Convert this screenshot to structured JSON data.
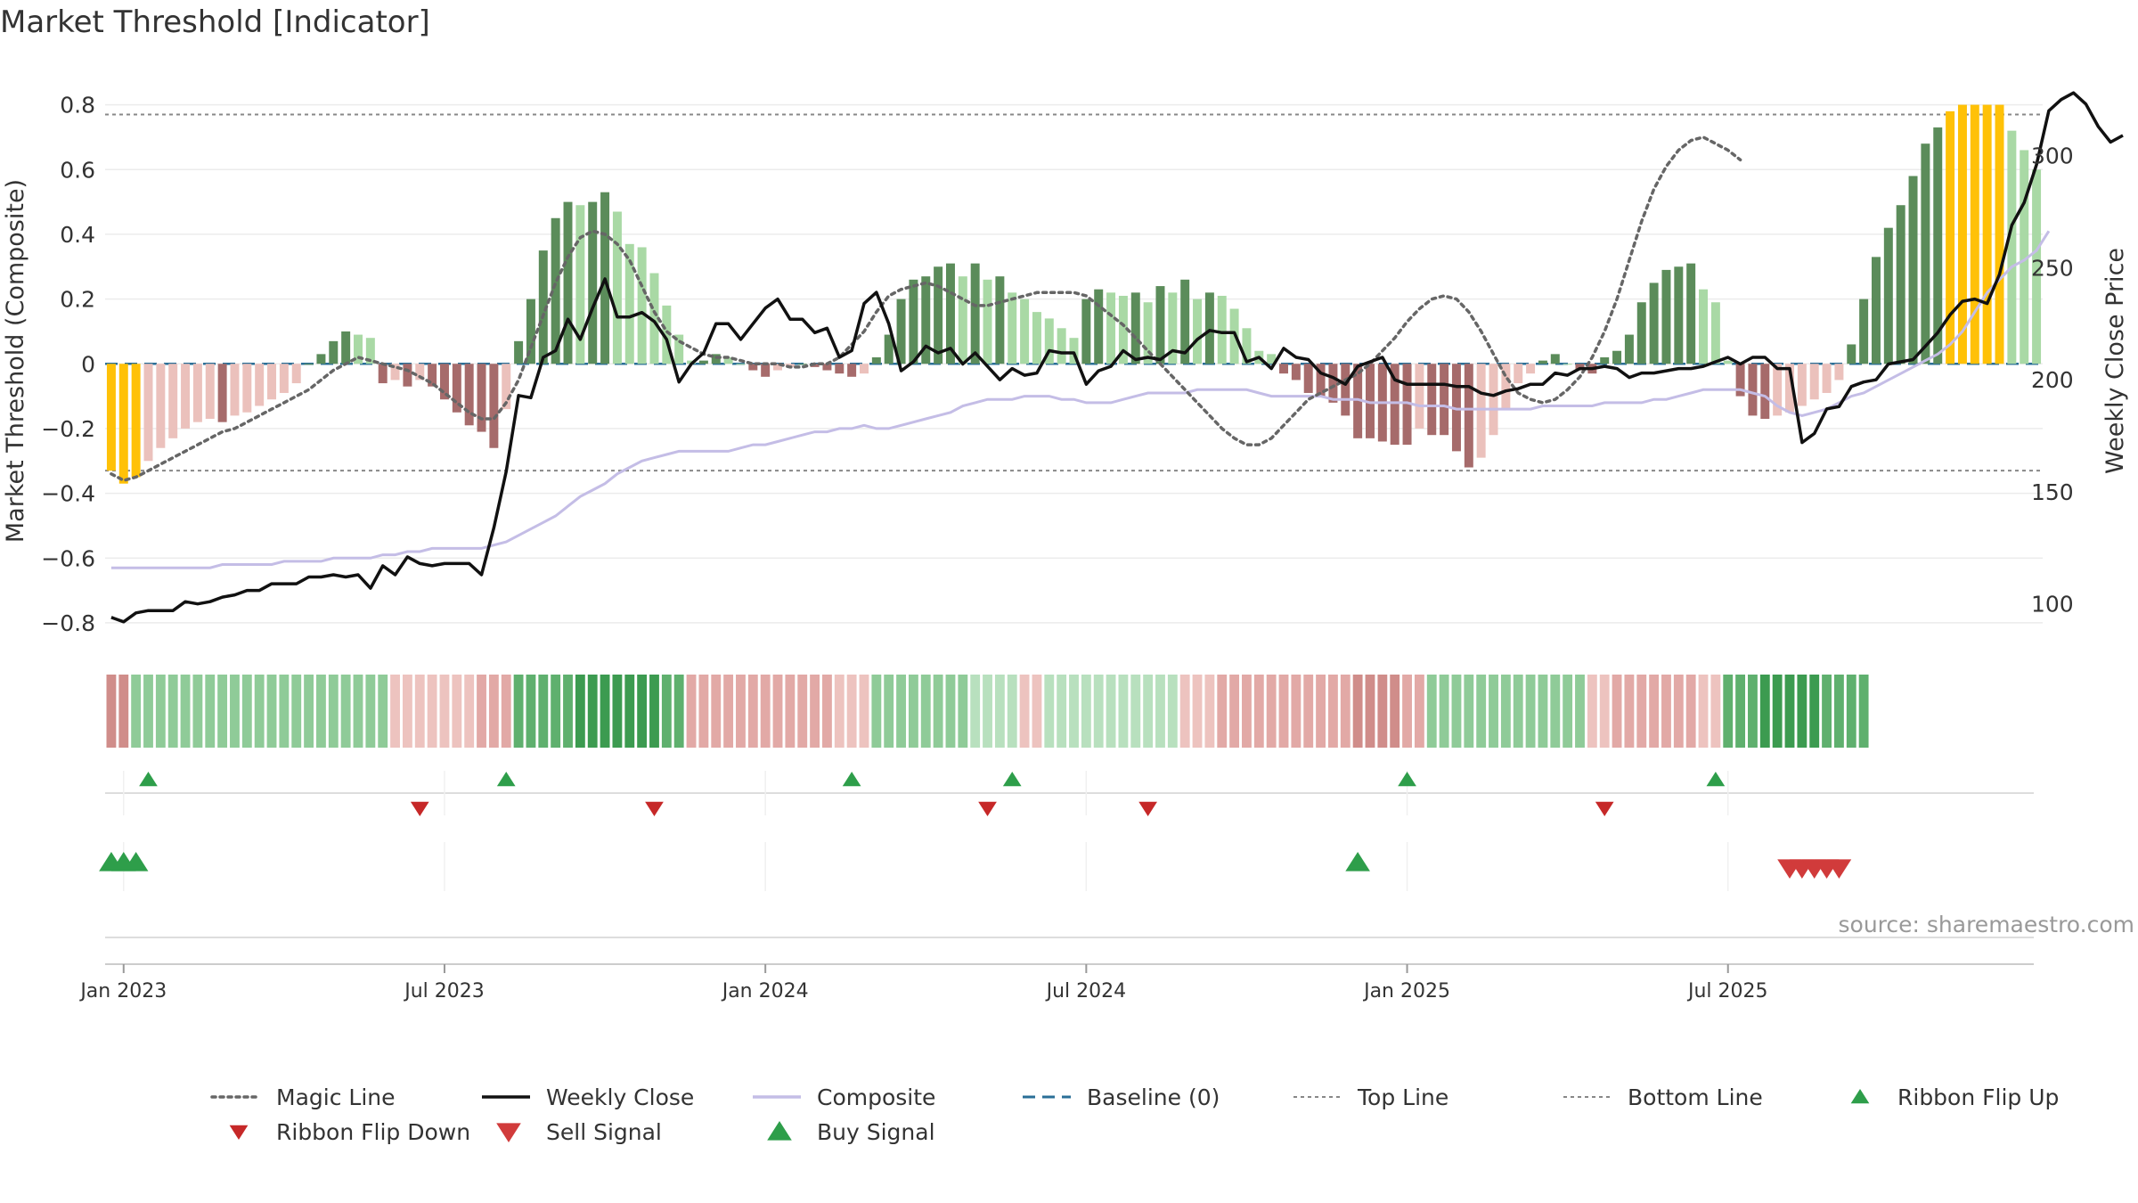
{
  "chart_data": {
    "type": "bar",
    "title": "Market Threshold [Indicator]",
    "ylabel": "Market Threshold (Composite)",
    "y2label": "Weekly Close Price",
    "source": "source: sharemaestro.com",
    "ylim": [
      -0.88,
      0.92
    ],
    "y2lim": [
      80,
      340
    ],
    "grid": true,
    "legend_position": "bottom",
    "y_ticks": [
      {
        "value": 0.8,
        "label": "0.8"
      },
      {
        "value": 0.6,
        "label": "0.6"
      },
      {
        "value": 0.4,
        "label": "0.4"
      },
      {
        "value": 0.2,
        "label": "0.2"
      },
      {
        "value": 0,
        "label": "0"
      },
      {
        "value": -0.2,
        "label": "−0.2"
      },
      {
        "value": -0.4,
        "label": "−0.4"
      },
      {
        "value": -0.6,
        "label": "−0.6"
      },
      {
        "value": -0.8,
        "label": "−0.8"
      }
    ],
    "y2_ticks": [
      {
        "value": 300,
        "label": "300"
      },
      {
        "value": 250,
        "label": "250"
      },
      {
        "value": 200,
        "label": "200"
      },
      {
        "value": 150,
        "label": "150"
      },
      {
        "value": 100,
        "label": "100"
      }
    ],
    "x_ticks": [
      {
        "week": 1,
        "label": "Jan 2023"
      },
      {
        "week": 27,
        "label": "Jul 2023"
      },
      {
        "week": 53,
        "label": "Jan 2024"
      },
      {
        "week": 79,
        "label": "Jul 2024"
      },
      {
        "week": 105,
        "label": "Jan 2025"
      },
      {
        "week": 131,
        "label": "Jul 2025"
      }
    ],
    "top_line": 0.77,
    "bottom_line": -0.33,
    "colors": {
      "gold": "#FFC107",
      "green_dark": "#5B8C5A",
      "green_light": "#A9D9A5",
      "red_dark": "#A66B6B",
      "red_light": "#EBC1BC",
      "weekly_close": "#111111",
      "composite": "#C4BDE6",
      "magic_line": "#666666",
      "baseline": "#2A6F97",
      "threshold": "#888888",
      "signal_up": "#2E9E4A",
      "signal_down": "#D13B3B"
    },
    "bars": [
      -0.33,
      -0.37,
      -0.35,
      -0.3,
      -0.26,
      -0.23,
      -0.2,
      -0.18,
      -0.17,
      -0.18,
      -0.16,
      -0.15,
      -0.13,
      -0.11,
      -0.09,
      -0.06,
      0,
      0.03,
      0.07,
      0.1,
      0.09,
      0.08,
      -0.06,
      -0.05,
      -0.07,
      -0.05,
      -0.07,
      -0.11,
      -0.15,
      -0.19,
      -0.21,
      -0.26,
      -0.14,
      0.07,
      0.2,
      0.35,
      0.45,
      0.5,
      0.49,
      0.5,
      0.53,
      0.47,
      0.37,
      0.36,
      0.28,
      0.18,
      0.09,
      0.01,
      0.01,
      0.03,
      0.02,
      0,
      -0.02,
      -0.04,
      -0.02,
      -0.01,
      0,
      -0.01,
      -0.02,
      -0.03,
      -0.04,
      -0.03,
      0.02,
      0.09,
      0.2,
      0.26,
      0.27,
      0.3,
      0.31,
      0.27,
      0.31,
      0.26,
      0.27,
      0.22,
      0.2,
      0.16,
      0.14,
      0.11,
      0.08,
      0.2,
      0.23,
      0.22,
      0.21,
      0.22,
      0.19,
      0.24,
      0.22,
      0.26,
      0.2,
      0.22,
      0.21,
      0.17,
      0.11,
      0.04,
      0.03,
      -0.03,
      -0.05,
      -0.09,
      -0.1,
      -0.12,
      -0.16,
      -0.23,
      -0.23,
      -0.24,
      -0.25,
      -0.25,
      -0.2,
      -0.22,
      -0.22,
      -0.27,
      -0.32,
      -0.29,
      -0.22,
      -0.14,
      -0.06,
      -0.03,
      0.01,
      0.03,
      0,
      -0.02,
      -0.03,
      0.02,
      0.04,
      0.09,
      0.19,
      0.25,
      0.29,
      0.3,
      0.31,
      0.23,
      0.19,
      0.01,
      -0.1,
      -0.16,
      -0.17,
      -0.16,
      -0.15,
      -0.13,
      -0.11,
      -0.09,
      -0.05,
      0.06,
      0.2,
      0.33,
      0.42,
      0.49,
      0.58,
      0.68,
      0.73,
      0.78,
      0.8,
      0.8,
      0.8,
      0.8,
      0.72,
      0.66,
      0.6
    ],
    "weekly_close": [
      94,
      92,
      96,
      97,
      97,
      97,
      101,
      100,
      101,
      103,
      104,
      106,
      106,
      109,
      109,
      109,
      112,
      112,
      113,
      112,
      113,
      107,
      117,
      113,
      121,
      118,
      117,
      118,
      118,
      118,
      113,
      134,
      159,
      193,
      192,
      210,
      213,
      227,
      218,
      232,
      245,
      228,
      228,
      230,
      226,
      218,
      199,
      207,
      212,
      225,
      225,
      218,
      225,
      232,
      236,
      227,
      227,
      221,
      223,
      210,
      213,
      234,
      239,
      225,
      204,
      208,
      215,
      212,
      214,
      207,
      212,
      206,
      200,
      205,
      202,
      203,
      213,
      212,
      212,
      198,
      204,
      206,
      213,
      209,
      210,
      209,
      213,
      212,
      218,
      222,
      221,
      221,
      208,
      210,
      205,
      214,
      210,
      209,
      203,
      201,
      198,
      206,
      208,
      210,
      200,
      198,
      198,
      198,
      198,
      197,
      197,
      194,
      193,
      195,
      196,
      198,
      198,
      203,
      202,
      205,
      205,
      206,
      205,
      201,
      203,
      203,
      204,
      205,
      205,
      206,
      208,
      210,
      207,
      210,
      210,
      205,
      205,
      172,
      176,
      187,
      188,
      197,
      199,
      200,
      207,
      208,
      209,
      215,
      221,
      229,
      235,
      236,
      234,
      247,
      269,
      279,
      296,
      320,
      325,
      328,
      323,
      313,
      306,
      309
    ],
    "composite": [
      -0.63,
      -0.63,
      -0.63,
      -0.63,
      -0.63,
      -0.63,
      -0.63,
      -0.63,
      -0.63,
      -0.62,
      -0.62,
      -0.62,
      -0.62,
      -0.62,
      -0.61,
      -0.61,
      -0.61,
      -0.61,
      -0.6,
      -0.6,
      -0.6,
      -0.6,
      -0.59,
      -0.59,
      -0.58,
      -0.58,
      -0.57,
      -0.57,
      -0.57,
      -0.57,
      -0.57,
      -0.56,
      -0.55,
      -0.53,
      -0.51,
      -0.49,
      -0.47,
      -0.44,
      -0.41,
      -0.39,
      -0.37,
      -0.34,
      -0.32,
      -0.3,
      -0.29,
      -0.28,
      -0.27,
      -0.27,
      -0.27,
      -0.27,
      -0.27,
      -0.26,
      -0.25,
      -0.25,
      -0.24,
      -0.23,
      -0.22,
      -0.21,
      -0.21,
      -0.2,
      -0.2,
      -0.19,
      -0.2,
      -0.2,
      -0.19,
      -0.18,
      -0.17,
      -0.16,
      -0.15,
      -0.13,
      -0.12,
      -0.11,
      -0.11,
      -0.11,
      -0.1,
      -0.1,
      -0.1,
      -0.11,
      -0.11,
      -0.12,
      -0.12,
      -0.12,
      -0.11,
      -0.1,
      -0.09,
      -0.09,
      -0.09,
      -0.09,
      -0.08,
      -0.08,
      -0.08,
      -0.08,
      -0.08,
      -0.09,
      -0.1,
      -0.1,
      -0.1,
      -0.1,
      -0.1,
      -0.11,
      -0.11,
      -0.11,
      -0.12,
      -0.12,
      -0.12,
      -0.12,
      -0.13,
      -0.13,
      -0.13,
      -0.14,
      -0.14,
      -0.14,
      -0.14,
      -0.14,
      -0.14,
      -0.14,
      -0.13,
      -0.13,
      -0.13,
      -0.13,
      -0.13,
      -0.12,
      -0.12,
      -0.12,
      -0.12,
      -0.11,
      -0.11,
      -0.1,
      -0.09,
      -0.08,
      -0.08,
      -0.08,
      -0.08,
      -0.09,
      -0.1,
      -0.13,
      -0.15,
      -0.16,
      -0.15,
      -0.14,
      -0.12,
      -0.1,
      -0.09,
      -0.07,
      -0.05,
      -0.03,
      -0.01,
      0.01,
      0.03,
      0.06,
      0.1,
      0.16,
      0.22,
      0.26,
      0.3,
      0.32,
      0.35,
      0.41
    ],
    "magic_line": [
      -0.34,
      -0.36,
      -0.35,
      -0.33,
      -0.31,
      -0.29,
      -0.27,
      -0.25,
      -0.23,
      -0.21,
      -0.2,
      -0.18,
      -0.16,
      -0.14,
      -0.12,
      -0.1,
      -0.08,
      -0.05,
      -0.02,
      0,
      0.02,
      0.01,
      0,
      -0.01,
      -0.02,
      -0.04,
      -0.06,
      -0.09,
      -0.12,
      -0.15,
      -0.17,
      -0.17,
      -0.12,
      -0.05,
      0.05,
      0.15,
      0.25,
      0.33,
      0.39,
      0.41,
      0.4,
      0.37,
      0.32,
      0.24,
      0.16,
      0.1,
      0.07,
      0.05,
      0.03,
      0.02,
      0.02,
      0.01,
      0,
      0,
      0,
      -0.01,
      -0.01,
      0,
      0,
      0.02,
      0.06,
      0.1,
      0.16,
      0.21,
      0.23,
      0.24,
      0.25,
      0.24,
      0.22,
      0.2,
      0.18,
      0.18,
      0.19,
      0.2,
      0.21,
      0.22,
      0.22,
      0.22,
      0.22,
      0.21,
      0.18,
      0.15,
      0.12,
      0.08,
      0.04,
      0,
      -0.04,
      -0.08,
      -0.12,
      -0.16,
      -0.2,
      -0.23,
      -0.25,
      -0.25,
      -0.23,
      -0.19,
      -0.15,
      -0.11,
      -0.09,
      -0.07,
      -0.05,
      -0.03,
      0,
      0.04,
      0.08,
      0.13,
      0.17,
      0.2,
      0.21,
      0.2,
      0.16,
      0.1,
      0.03,
      -0.04,
      -0.09,
      -0.11,
      -0.12,
      -0.11,
      -0.08,
      -0.04,
      0.02,
      0.1,
      0.2,
      0.32,
      0.44,
      0.54,
      0.61,
      0.66,
      0.69,
      0.7,
      0.68,
      0.66,
      0.63
    ],
    "ribbon": [
      -0.5,
      -0.55,
      -0.5,
      -0.45,
      -0.4,
      -0.35,
      -0.3,
      -0.3,
      -0.3,
      -0.35,
      -0.35,
      -0.35,
      -0.35,
      -0.35,
      -0.35,
      -0.35,
      -0.35,
      -0.35,
      -0.35,
      -0.3,
      -0.3,
      -0.3,
      -0.3,
      -0.3,
      -0.3,
      -0.3,
      -0.3,
      -0.3,
      -0.3,
      -0.3,
      -0.3,
      -0.3,
      -0.3,
      -0.35,
      -0.35,
      -0.35,
      -0.35,
      -0.35,
      -0.35,
      -0.35,
      -0.35,
      -0.35,
      -0.35,
      -0.35,
      -0.35,
      -0.35,
      -0.35,
      -0.35,
      -0.35,
      -0.35,
      -0.35,
      -0.35,
      -0.35,
      -0.35,
      -0.35,
      -0.35,
      -0.35,
      -0.35,
      -0.35,
      -0.35,
      -0.35,
      -0.35,
      -0.35,
      -0.35,
      -0.35,
      -0.35,
      -0.35,
      -0.35,
      -0.35,
      -0.35,
      -0.35,
      -0.35,
      -0.35,
      -0.35,
      -0.35,
      -0.35,
      -0.35,
      -0.35,
      -0.35,
      -0.35,
      -0.35,
      -0.35,
      -0.35,
      -0.35,
      -0.35,
      -0.35,
      -0.35,
      -0.35,
      -0.35,
      -0.35,
      -0.35,
      -0.35,
      -0.35,
      -0.35,
      -0.35,
      -0.35,
      -0.35,
      -0.35,
      -0.35,
      -0.35,
      -0.35,
      -0.35,
      -0.35,
      -0.35,
      -0.35,
      -0.35,
      -0.35,
      -0.35,
      -0.35,
      -0.35,
      -0.35,
      -0.35,
      -0.35,
      -0.35,
      -0.35,
      -0.35,
      -0.35,
      -0.35,
      -0.35,
      -0.35,
      -0.35,
      -0.35,
      -0.35,
      -0.35,
      -0.35,
      -0.35,
      -0.35,
      -0.35,
      -0.35,
      -0.35,
      -0.35,
      -0.35,
      -0.35,
      -0.35,
      -0.35,
      -0.35,
      -0.35,
      -0.35,
      -0.35,
      -0.35,
      -0.35,
      -0.35,
      -0.35,
      -0.35,
      -0.35,
      -0.35,
      -0.35,
      -0.35
    ],
    "ribbon_segments": [
      {
        "from": 0,
        "to": 1,
        "state": "red",
        "level": 3
      },
      {
        "from": 2,
        "to": 22,
        "state": "green",
        "level": 2
      },
      {
        "from": 23,
        "to": 29,
        "state": "red",
        "level": 1
      },
      {
        "from": 30,
        "to": 32,
        "state": "red",
        "level": 2
      },
      {
        "from": 33,
        "to": 37,
        "state": "green",
        "level": 3
      },
      {
        "from": 38,
        "to": 44,
        "state": "green",
        "level": 4
      },
      {
        "from": 45,
        "to": 46,
        "state": "green",
        "level": 3
      },
      {
        "from": 47,
        "to": 58,
        "state": "red",
        "level": 2
      },
      {
        "from": 59,
        "to": 61,
        "state": "red",
        "level": 1
      },
      {
        "from": 62,
        "to": 69,
        "state": "green",
        "level": 2
      },
      {
        "from": 70,
        "to": 73,
        "state": "green",
        "level": 1
      },
      {
        "from": 74,
        "to": 75,
        "state": "red",
        "level": 1
      },
      {
        "from": 76,
        "to": 86,
        "state": "green",
        "level": 1
      },
      {
        "from": 87,
        "to": 89,
        "state": "red",
        "level": 1
      },
      {
        "from": 90,
        "to": 100,
        "state": "red",
        "level": 2
      },
      {
        "from": 101,
        "to": 104,
        "state": "red",
        "level": 3
      },
      {
        "from": 105,
        "to": 106,
        "state": "red",
        "level": 2
      },
      {
        "from": 107,
        "to": 119,
        "state": "green",
        "level": 2
      },
      {
        "from": 120,
        "to": 121,
        "state": "red",
        "level": 1
      },
      {
        "from": 122,
        "to": 128,
        "state": "red",
        "level": 2
      },
      {
        "from": 129,
        "to": 130,
        "state": "red",
        "level": 1
      },
      {
        "from": 131,
        "to": 133,
        "state": "green",
        "level": 3
      },
      {
        "from": 134,
        "to": 138,
        "state": "green",
        "level": 4
      },
      {
        "from": 139,
        "to": 142,
        "state": "green",
        "level": 3
      }
    ],
    "ribbon_flip_up": [
      3,
      32,
      60,
      73,
      105,
      130
    ],
    "ribbon_flip_down": [
      25,
      44,
      71,
      84,
      121
    ],
    "buy_signal": [
      0,
      1,
      2,
      101
    ],
    "sell_signal": [
      136,
      137,
      138,
      139,
      140
    ],
    "legend": [
      {
        "label": "Magic Line",
        "kind": "dotted",
        "color": "#666666"
      },
      {
        "label": "Weekly Close",
        "kind": "solid",
        "color": "#111111"
      },
      {
        "label": "Composite",
        "kind": "solid",
        "color": "#C4BDE6"
      },
      {
        "label": "Baseline (0)",
        "kind": "dashed",
        "color": "#2A6F97"
      },
      {
        "label": "Top Line",
        "kind": "thin-dotted",
        "color": "#888888"
      },
      {
        "label": "Bottom Line",
        "kind": "thin-dotted",
        "color": "#888888"
      },
      {
        "label": "Ribbon Flip Up",
        "kind": "tri-up",
        "color": "#2E9E4A"
      },
      {
        "label": "Ribbon Flip Down",
        "kind": "tri-down",
        "color": "#C62828"
      },
      {
        "label": "Sell Signal",
        "kind": "tri-down-big",
        "color": "#D13B3B"
      },
      {
        "label": "Buy Signal",
        "kind": "tri-up-big",
        "color": "#2E9E4A"
      }
    ]
  }
}
